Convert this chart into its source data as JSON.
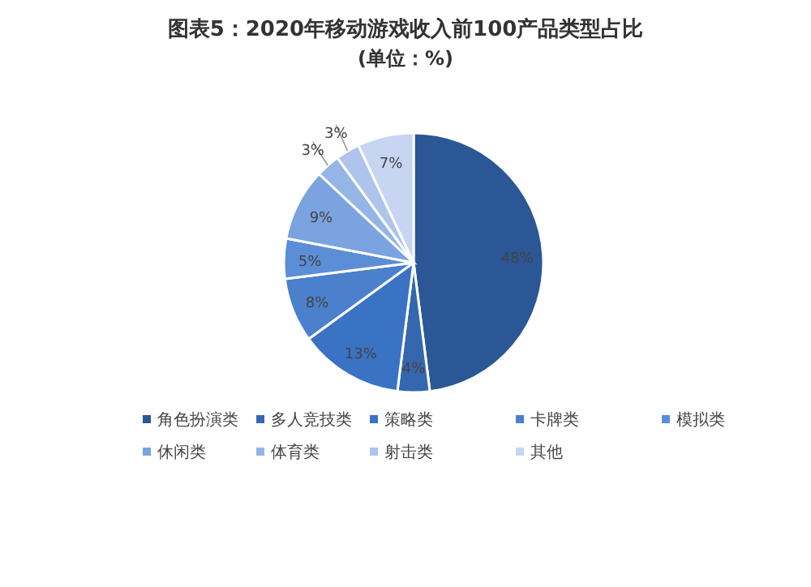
{
  "chart_data": {
    "type": "pie",
    "title": "图表5：2020年移动游戏收入前100产品类型占比",
    "subtitle": "(单位：%)",
    "categories": [
      "角色扮演类",
      "多人竞技类",
      "策略类",
      "卡牌类",
      "模拟类",
      "休闲类",
      "体育类",
      "射击类",
      "其他"
    ],
    "values": [
      48,
      4,
      13,
      8,
      5,
      9,
      3,
      3,
      7
    ],
    "colors": [
      "#2b5797",
      "#3467b0",
      "#3a72c4",
      "#4a80cc",
      "#5b8ed6",
      "#7aa3e0",
      "#95b5e6",
      "#aec4ec",
      "#c7d5f2"
    ],
    "value_labels": [
      "48%",
      "4%",
      "13%",
      "8%",
      "5%",
      "9%",
      "3%",
      "3%",
      "7%"
    ],
    "legend": "bottom"
  }
}
